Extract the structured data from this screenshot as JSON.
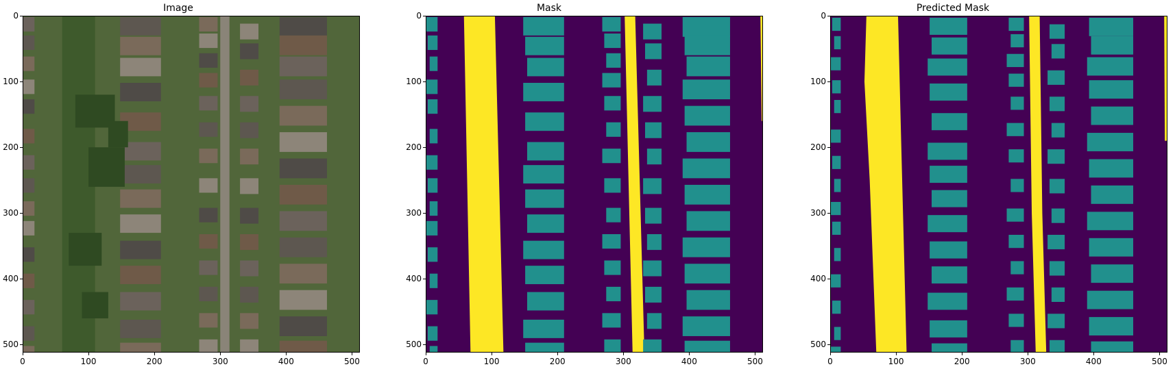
{
  "figure": {
    "panels": [
      {
        "id": "image",
        "title": "Image",
        "content": "aerial-photo"
      },
      {
        "id": "mask",
        "title": "Mask",
        "content": "segmentation-mask"
      },
      {
        "id": "predicted",
        "title": "Predicted Mask",
        "content": "segmentation-mask"
      }
    ],
    "x_ticks": [
      "0",
      "100",
      "200",
      "300",
      "400",
      "500"
    ],
    "y_ticks": [
      "0",
      "100",
      "200",
      "300",
      "400",
      "500"
    ],
    "axis_range": [
      0,
      512
    ],
    "colors": {
      "background_class": "#440154",
      "building_class": "#21908d",
      "road_class": "#fde725",
      "photo_roof": "#6b625b",
      "photo_tree": "#3e5a2c",
      "photo_grass": "#51663a",
      "photo_road": "#8a8478"
    }
  }
}
